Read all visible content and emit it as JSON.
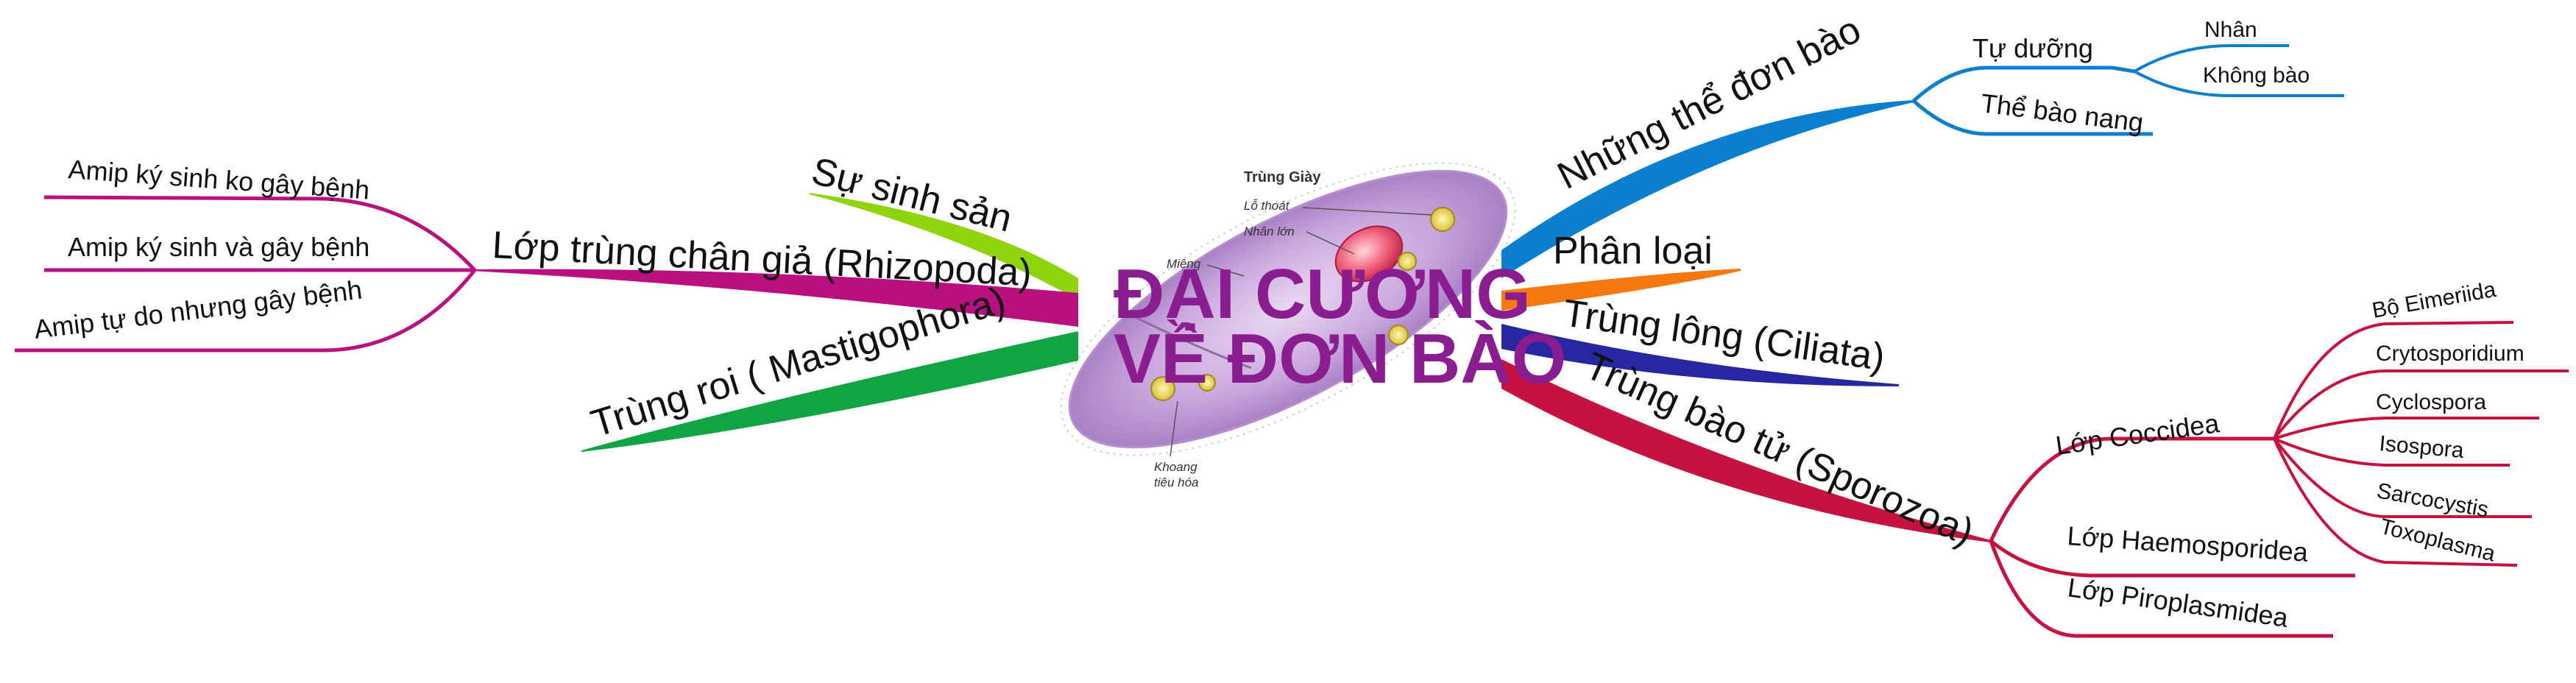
{
  "colors": {
    "blue": "#0a7fce",
    "orange": "#f7780f",
    "navy": "#2627a1",
    "crimson": "#c6123f",
    "magenta": "#b8117f",
    "lime": "#8fd40f",
    "green": "#10a443",
    "title": "#8a1e91"
  },
  "center": {
    "title_line1": "ĐẠI CƯƠNG",
    "title_line2": "VỀ ĐƠN BÀO",
    "image": {
      "title": "Trùng Giày",
      "label_lo_thoat": "Lỗ thoát",
      "label_nhan_lon": "Nhân lớn",
      "label_mieng": "Miệng",
      "label_khoang": "Khoang",
      "label_tieu_hoa": "tiêu hóa"
    }
  },
  "right": {
    "nhung_the": "Những thể đơn bào",
    "tu_duong": "Tự dưỡng",
    "nhan": "Nhân",
    "khong_bao": "Không bào",
    "the_bao_nang": "Thể bào nang",
    "phan_loai": "Phân loại",
    "trung_long": "Trùng lông (Ciliata)",
    "trung_bao_tu": "Trùng bào tử (Sporozoa)",
    "lop_coccidea": "Lớp Coccidea",
    "bo_eimeriida": "Bộ Eimeriida",
    "crytosporidium": "Crytosporidium",
    "cyclospora": "Cyclospora",
    "isospora": "Isospora",
    "sarcocystis": "Sarcocystis",
    "toxoplasma": "Toxoplasma",
    "lop_haemosporidea": "Lớp Haemosporidea",
    "lop_piroplasmidea": "Lớp Piroplasmidea"
  },
  "left": {
    "su_sinh_san": "Sự sinh sản",
    "lop_trung_chan_gia": "Lớp trùng chân giả (Rhizopoda)",
    "amip_ko_gay_benh": "Amip ký sinh ko gây bệnh",
    "amip_va_gay_benh": "Amip ký sinh và gây bệnh",
    "amip_tu_do": "Amip tự do nhưng gây bệnh",
    "trung_roi": "Trùng roi ( Mastigophora)"
  }
}
